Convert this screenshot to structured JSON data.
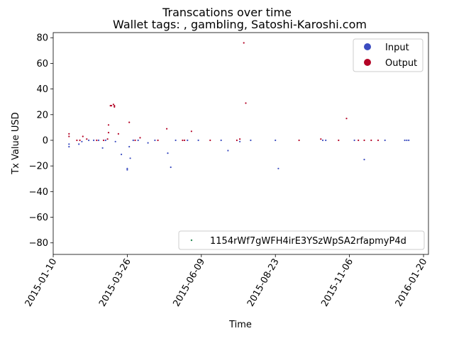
{
  "chart_data": {
    "type": "scatter",
    "title": "Transcations over time",
    "subtitle": "Wallet tags: , gambling, Satoshi-Karoshi.com",
    "xlabel": "Time",
    "ylabel": "Tx Value USD",
    "xlim": [
      "2015-01-10",
      "2016-01-25"
    ],
    "ylim": [
      -89,
      84
    ],
    "x_ticks": [
      "2015-01-10",
      "2015-03-26",
      "2015-06-09",
      "2015-08-23",
      "2015-11-06",
      "2016-01-20"
    ],
    "y_ticks": [
      -80,
      -60,
      -40,
      -20,
      0,
      20,
      40,
      60,
      80
    ],
    "grid": false,
    "legend": {
      "placement": "upper-right",
      "entries": [
        {
          "label": "Input",
          "color": "#3b4cc0"
        },
        {
          "label": "Output",
          "color": "#b40426"
        }
      ]
    },
    "annotation_legend": {
      "placement": "lower-right",
      "label": "1154rWf7gWFH4irE3YSzWpSA2rfapmyP4d",
      "color": "#2e8b57"
    },
    "series": [
      {
        "name": "Input",
        "color": "#3b4cc0",
        "points": [
          [
            "2015-01-26",
            -3
          ],
          [
            "2015-01-26",
            -5
          ],
          [
            "2015-02-05",
            -3
          ],
          [
            "2015-02-08",
            -1
          ],
          [
            "2015-02-15",
            0
          ],
          [
            "2015-02-20",
            0
          ],
          [
            "2015-02-25",
            0
          ],
          [
            "2015-03-01",
            -6
          ],
          [
            "2015-03-04",
            0
          ],
          [
            "2015-03-14",
            -1
          ],
          [
            "2015-03-20",
            -11
          ],
          [
            "2015-03-26",
            -22
          ],
          [
            "2015-03-26",
            -23
          ],
          [
            "2015-03-28",
            -5
          ],
          [
            "2015-03-29",
            -14
          ],
          [
            "2015-04-01",
            0
          ],
          [
            "2015-04-06",
            0
          ],
          [
            "2015-04-16",
            -2
          ],
          [
            "2015-04-23",
            0
          ],
          [
            "2015-05-06",
            -10
          ],
          [
            "2015-05-09",
            -21
          ],
          [
            "2015-05-14",
            0
          ],
          [
            "2015-05-26",
            0
          ],
          [
            "2015-06-06",
            0
          ],
          [
            "2015-06-29",
            0
          ],
          [
            "2015-07-06",
            -8
          ],
          [
            "2015-07-18",
            -1
          ],
          [
            "2015-07-29",
            0
          ],
          [
            "2015-08-23",
            0
          ],
          [
            "2015-08-26",
            -22
          ],
          [
            "2015-10-10",
            0
          ],
          [
            "2015-10-13",
            0
          ],
          [
            "2015-11-11",
            0
          ],
          [
            "2015-11-21",
            -15
          ],
          [
            "2015-12-12",
            0
          ],
          [
            "2016-01-01",
            0
          ],
          [
            "2016-01-03",
            0
          ],
          [
            "2016-01-05",
            0
          ]
        ]
      },
      {
        "name": "Output",
        "color": "#b40426",
        "points": [
          [
            "2015-01-26",
            5
          ],
          [
            "2015-01-26",
            3
          ],
          [
            "2015-02-03",
            0
          ],
          [
            "2015-02-06",
            0
          ],
          [
            "2015-02-09",
            3
          ],
          [
            "2015-02-13",
            1
          ],
          [
            "2015-02-23",
            0
          ],
          [
            "2015-03-02",
            0
          ],
          [
            "2015-03-06",
            1
          ],
          [
            "2015-03-07",
            12
          ],
          [
            "2015-03-07",
            6
          ],
          [
            "2015-03-09",
            27
          ],
          [
            "2015-03-10",
            27
          ],
          [
            "2015-03-12",
            28
          ],
          [
            "2015-03-13",
            27
          ],
          [
            "2015-03-13",
            26
          ],
          [
            "2015-03-17",
            5
          ],
          [
            "2015-03-28",
            14
          ],
          [
            "2015-04-03",
            0
          ],
          [
            "2015-04-08",
            2
          ],
          [
            "2015-04-26",
            0
          ],
          [
            "2015-05-05",
            9
          ],
          [
            "2015-05-21",
            0
          ],
          [
            "2015-05-23",
            0
          ],
          [
            "2015-05-30",
            7
          ],
          [
            "2015-06-18",
            0
          ],
          [
            "2015-07-15",
            0
          ],
          [
            "2015-07-18",
            1
          ],
          [
            "2015-07-22",
            76
          ],
          [
            "2015-07-24",
            29
          ],
          [
            "2015-09-16",
            0
          ],
          [
            "2015-10-08",
            1
          ],
          [
            "2015-10-26",
            0
          ],
          [
            "2015-11-03",
            17
          ],
          [
            "2015-11-15",
            0
          ],
          [
            "2015-11-21",
            0
          ],
          [
            "2015-11-28",
            0
          ],
          [
            "2015-12-05",
            0
          ]
        ]
      }
    ]
  }
}
